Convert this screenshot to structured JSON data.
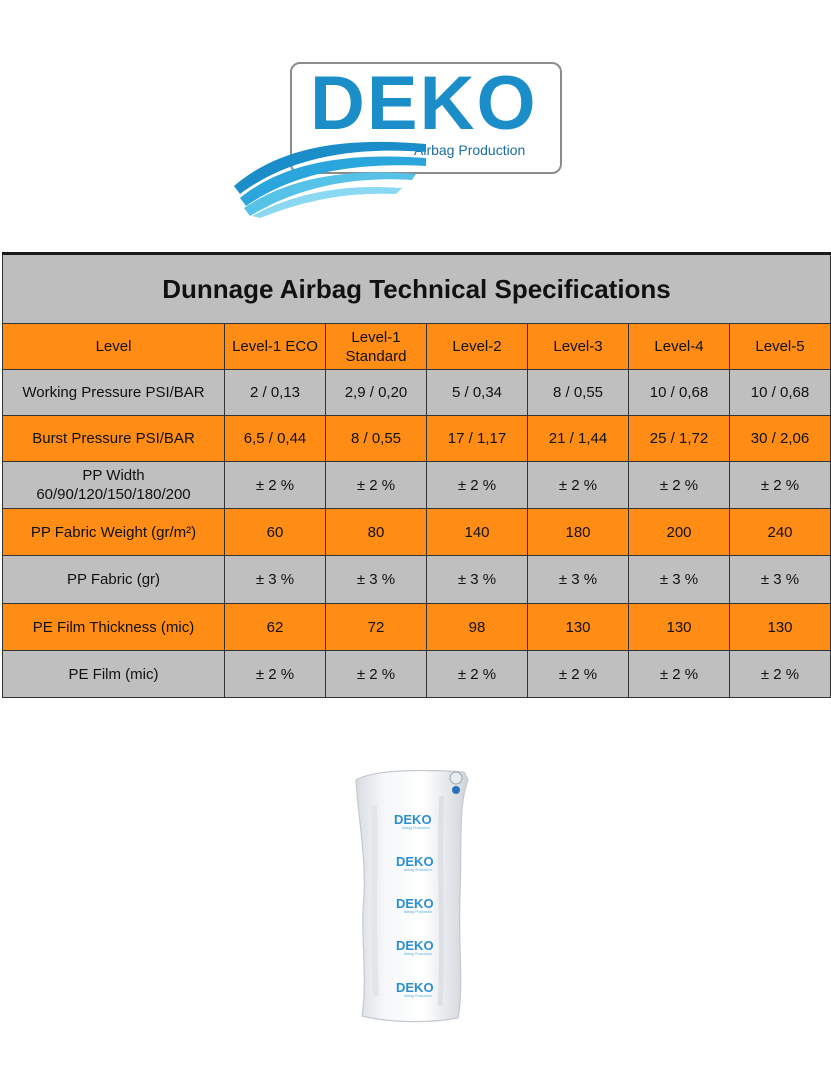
{
  "logo": {
    "brand": "DEKO",
    "tagline": "Airbag Production",
    "colors": {
      "brand_blue": "#1b8ec9",
      "frame_gray": "#8c8c8c"
    }
  },
  "table": {
    "title": "Dunnage Airbag Technical Specifications",
    "colors": {
      "orange": "#ff8c14",
      "gray": "#bfbfbf",
      "title_gray": "#bebebe"
    },
    "rows": [
      {
        "label": "Level",
        "style": "orange",
        "cells": [
          "Level-1 ECO",
          "Level-1 Standard",
          "Level-2",
          "Level-3",
          "Level-4",
          "Level-5"
        ]
      },
      {
        "label": "Working Pressure PSI/BAR",
        "style": "gray",
        "cells": [
          "2 / 0,13",
          "2,9 / 0,20",
          "5 / 0,34",
          "8 / 0,55",
          "10 / 0,68",
          "10 / 0,68"
        ]
      },
      {
        "label": "Burst Pressure PSI/BAR",
        "style": "orange",
        "cells": [
          "6,5 / 0,44",
          "8 / 0,55",
          "17 / 1,17",
          "21 / 1,44",
          "25 / 1,72",
          "30 / 2,06"
        ]
      },
      {
        "label": "PP Width 60/90/120/150/180/200",
        "style": "gray",
        "cells": [
          "± 2 %",
          "± 2 %",
          "± 2 %",
          "± 2 %",
          "± 2 %",
          "± 2 %"
        ]
      },
      {
        "label": "PP Fabric Weight (gr/m²)",
        "style": "orange",
        "cells": [
          "60",
          "80",
          "140",
          "180",
          "200",
          "240"
        ]
      },
      {
        "label": "PP Fabric (gr)",
        "style": "gray",
        "cells": [
          "± 3 %",
          "± 3 %",
          "± 3 %",
          "± 3 %",
          "± 3 %",
          "± 3 %"
        ]
      },
      {
        "label": "PE Film Thickness (mic)",
        "style": "orange",
        "cells": [
          "62",
          "72",
          "98",
          "130",
          "130",
          "130"
        ]
      },
      {
        "label": "PE Film (mic)",
        "style": "gray",
        "cells": [
          "± 2 %",
          "± 2 %",
          "± 2 %",
          "± 2 %",
          "± 2 %",
          "± 2 %"
        ]
      }
    ]
  },
  "product_image": {
    "print_brand": "DEKO",
    "print_tagline": "Airbag Production"
  }
}
